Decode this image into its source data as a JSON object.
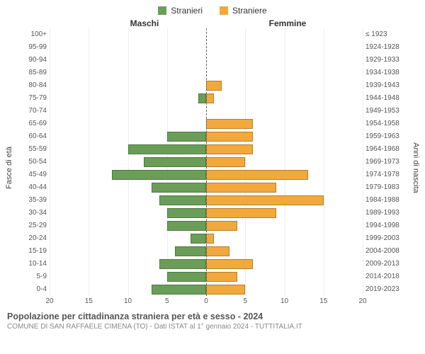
{
  "chart": {
    "type": "population-pyramid",
    "legend": {
      "male": {
        "label": "Stranieri",
        "color": "#6a9e58"
      },
      "female": {
        "label": "Straniere",
        "color": "#f2a93b"
      }
    },
    "column_headers": {
      "left": "Maschi",
      "right": "Femmine"
    },
    "y_left_title": "Fasce di età",
    "y_right_title": "Anni di nascita",
    "age_groups": [
      "100+",
      "95-99",
      "90-94",
      "85-89",
      "80-84",
      "75-79",
      "70-74",
      "65-69",
      "60-64",
      "55-59",
      "50-54",
      "45-49",
      "40-44",
      "35-39",
      "30-34",
      "25-29",
      "20-24",
      "15-19",
      "10-14",
      "5-9",
      "0-4"
    ],
    "birth_years": [
      "≤ 1923",
      "1924-1928",
      "1929-1933",
      "1934-1938",
      "1939-1943",
      "1944-1948",
      "1949-1953",
      "1954-1958",
      "1959-1963",
      "1964-1968",
      "1969-1973",
      "1974-1978",
      "1979-1983",
      "1984-1988",
      "1989-1993",
      "1994-1998",
      "1999-2003",
      "2004-2008",
      "2009-2013",
      "2014-2018",
      "2019-2023"
    ],
    "male_values": [
      0,
      0,
      0,
      0,
      0,
      1,
      0,
      0,
      5,
      10,
      8,
      12,
      7,
      6,
      5,
      5,
      2,
      4,
      6,
      5,
      7
    ],
    "female_values": [
      0,
      0,
      0,
      0,
      2,
      1,
      0,
      6,
      6,
      6,
      5,
      13,
      9,
      15,
      9,
      4,
      1,
      3,
      6,
      4,
      5
    ],
    "x_ticks": [
      20,
      15,
      10,
      5,
      0,
      5,
      10,
      15,
      20
    ],
    "x_max": 20,
    "bar_colors": {
      "male": "#6a9e58",
      "female": "#f2a93b"
    },
    "grid_color": "#eeeeee",
    "background": "#ffffff"
  },
  "footer": {
    "title": "Popolazione per cittadinanza straniera per età e sesso - 2024",
    "subtitle": "COMUNE DI SAN RAFFAELE CIMENA (TO) - Dati ISTAT al 1° gennaio 2024 - TUTTITALIA.IT"
  }
}
